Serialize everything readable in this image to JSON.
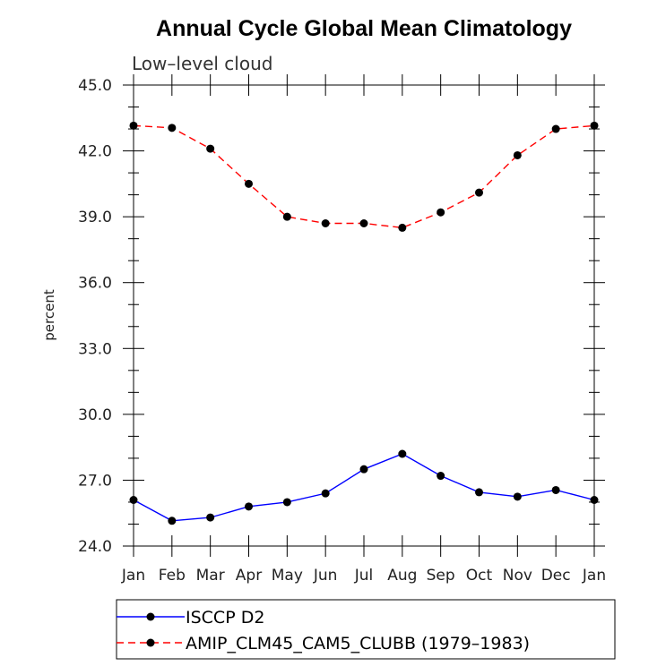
{
  "chart_data": {
    "type": "line",
    "title": "Annual Cycle Global Mean Climatology",
    "subtitle": "Low–level cloud",
    "xlabel": "",
    "ylabel": "percent",
    "categories": [
      "Jan",
      "Feb",
      "Mar",
      "Apr",
      "May",
      "Jun",
      "Jul",
      "Aug",
      "Sep",
      "Oct",
      "Nov",
      "Dec",
      "Jan"
    ],
    "ylim": [
      24.0,
      45.0
    ],
    "yticks": [
      "24.0",
      "27.0",
      "30.0",
      "33.0",
      "36.0",
      "39.0",
      "42.0",
      "45.0"
    ],
    "grid": false,
    "legend_position": "bottom",
    "series": [
      {
        "name": "ISCCP D2",
        "color": "#0000ff",
        "line_style": "solid",
        "marker": "filled-circle",
        "values": [
          26.1,
          25.15,
          25.3,
          25.8,
          26.0,
          26.4,
          27.5,
          28.2,
          27.2,
          26.45,
          26.25,
          26.55,
          26.1
        ]
      },
      {
        "name": "AMIP_CLM45_CAM5_CLUBB (1979–1983)",
        "color": "#ff0000",
        "line_style": "dashed",
        "marker": "filled-circle",
        "values": [
          43.15,
          43.05,
          42.1,
          40.5,
          39.0,
          38.7,
          38.7,
          38.5,
          39.2,
          40.1,
          41.8,
          43.0,
          43.15
        ]
      }
    ]
  }
}
